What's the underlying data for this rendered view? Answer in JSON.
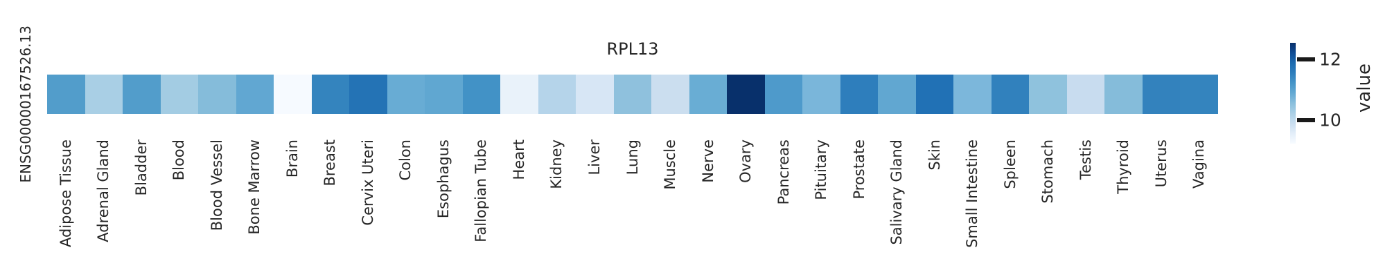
{
  "figure": {
    "background": "#ffffff",
    "text_color": "#262626",
    "title": "RPL13",
    "row_label": "ENSG00000167526.13"
  },
  "chart_data": {
    "type": "heatmap",
    "title": "RPL13",
    "rows": [
      "ENSG00000167526.13"
    ],
    "colormap": "Blues",
    "values_estimated_from_colorbar": true,
    "colorbar": {
      "label": "value",
      "ticks": [
        {
          "label": "12"
        },
        {
          "label": "10"
        }
      ],
      "range_approx": [
        9.3,
        12.6
      ],
      "top_color": "#08306b",
      "bottom_color": "#f7fbff",
      "position": "right"
    },
    "cells": [
      {
        "label": "Adipose Tissue",
        "color": "#529dcb",
        "value": 11.6
      },
      {
        "label": "Adrenal Gland",
        "color": "#a9cfe5",
        "value": 10.7
      },
      {
        "label": "Bladder",
        "color": "#529dcb",
        "value": 11.6
      },
      {
        "label": "Blood",
        "color": "#a3cce3",
        "value": 10.7
      },
      {
        "label": "Blood Vessel",
        "color": "#85bcda",
        "value": 11.0
      },
      {
        "label": "Bone Marrow",
        "color": "#61a7d2",
        "value": 11.5
      },
      {
        "label": "Brain",
        "color": "#f6faff",
        "value": 9.6
      },
      {
        "label": "Breast",
        "color": "#3484be",
        "value": 11.9
      },
      {
        "label": "Cervix Uteri",
        "color": "#2473b5",
        "value": 12.1
      },
      {
        "label": "Colon",
        "color": "#68acd4",
        "value": 11.4
      },
      {
        "label": "Esophagus",
        "color": "#60a7d1",
        "value": 11.5
      },
      {
        "label": "Fallopian Tube",
        "color": "#4292c6",
        "value": 11.8
      },
      {
        "label": "Heart",
        "color": "#e9f2fa",
        "value": 9.9
      },
      {
        "label": "Kidney",
        "color": "#b5d4ea",
        "value": 10.6
      },
      {
        "label": "Liver",
        "color": "#d7e6f5",
        "value": 10.1
      },
      {
        "label": "Lung",
        "color": "#8fc1dd",
        "value": 11.0
      },
      {
        "label": "Muscle",
        "color": "#cbdeef",
        "value": 10.3
      },
      {
        "label": "Nerve",
        "color": "#69add4",
        "value": 11.4
      },
      {
        "label": "Ovary",
        "color": "#08306b",
        "value": 12.6
      },
      {
        "label": "Pancreas",
        "color": "#4e9acb",
        "value": 11.6
      },
      {
        "label": "Pituitary",
        "color": "#7ab6da",
        "value": 11.2
      },
      {
        "label": "Prostate",
        "color": "#2e7ebc",
        "value": 12.0
      },
      {
        "label": "Salivary Gland",
        "color": "#61a7d1",
        "value": 11.5
      },
      {
        "label": "Skin",
        "color": "#2171b5",
        "value": 12.1
      },
      {
        "label": "Small Intestine",
        "color": "#7cb7db",
        "value": 11.2
      },
      {
        "label": "Spleen",
        "color": "#3181bd",
        "value": 11.9
      },
      {
        "label": "Stomach",
        "color": "#8fc2dd",
        "value": 11.0
      },
      {
        "label": "Testis",
        "color": "#c8dcef",
        "value": 10.3
      },
      {
        "label": "Thyroid",
        "color": "#85bcda",
        "value": 11.1
      },
      {
        "label": "Uterus",
        "color": "#3382bd",
        "value": 11.9
      },
      {
        "label": "Vagina",
        "color": "#3484be",
        "value": 11.9
      }
    ]
  }
}
